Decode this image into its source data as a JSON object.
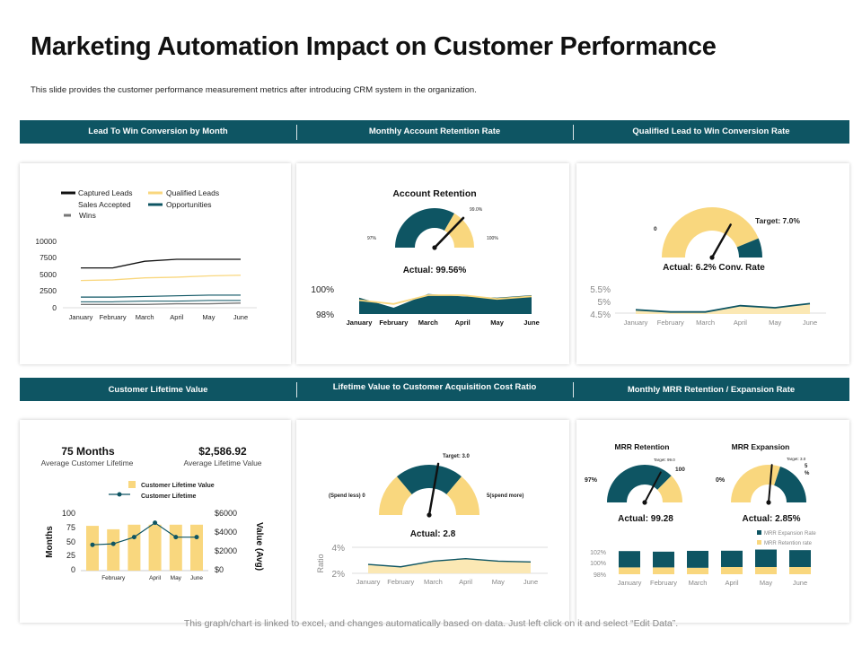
{
  "page": {
    "title": "Marketing Automation Impact on Customer Performance",
    "subtitle": "This slide provides the customer performance measurement metrics after introducing CRM  system in the organization.",
    "footer": "This graph/chart is linked to excel, and changes automatically based on data. Just left click on it and select “Edit Data”."
  },
  "colors": {
    "band": "#0e5563",
    "teal": "#0e5563",
    "yellow": "#f9d77e",
    "black": "#111111",
    "wins": "#777777",
    "paleYellow": "#fbe8b4"
  },
  "bands": {
    "top": [
      "Lead To Win Conversion by Month",
      "Monthly Account Retention Rate",
      "Qualified Lead to Win Conversion Rate"
    ],
    "bottom": [
      "Customer Lifetime Value",
      "Lifetime Value to Customer Acquisition Cost Ratio",
      "Monthly MRR Retention / Expansion Rate"
    ]
  },
  "chart_data": [
    {
      "id": "lead-to-win",
      "type": "line",
      "title": "Lead To Win Conversion by Month",
      "categories": [
        "January",
        "February",
        "March",
        "April",
        "May",
        "June"
      ],
      "legend": [
        "Captured Leads",
        "Qualified Leads",
        "Sales Accepted",
        "Opportunities",
        "Wins"
      ],
      "series": [
        {
          "name": "Captured Leads",
          "values": [
            6000,
            6000,
            7000,
            7300,
            7300,
            7300
          ]
        },
        {
          "name": "Qualified Leads",
          "values": [
            4100,
            4200,
            4500,
            4600,
            4800,
            4900
          ]
        },
        {
          "name": "Opportunities",
          "values": [
            1600,
            1600,
            1700,
            1800,
            1900,
            1900
          ]
        },
        {
          "name": "Sales Accepted",
          "values": [
            900,
            900,
            1000,
            1000,
            1100,
            1100
          ]
        },
        {
          "name": "Wins",
          "values": [
            500,
            500,
            500,
            600,
            600,
            700
          ]
        }
      ],
      "yticks": [
        "10000",
        "7500",
        "5000",
        "2500",
        "0"
      ],
      "ylim": [
        0,
        10000
      ]
    },
    {
      "id": "account-retention-gauge",
      "type": "gauge",
      "title": "Account Retention",
      "min_label": "97%",
      "max_label": "100%",
      "target_label": "99.0%",
      "min": 97,
      "max": 100,
      "actual": 99.56,
      "actual_label": "Actual: 99.56%"
    },
    {
      "id": "account-retention-monthly",
      "type": "area",
      "categories": [
        "January",
        "February",
        "March",
        "April",
        "May",
        "June"
      ],
      "series": [
        {
          "name": "Actual",
          "values": [
            99.3,
            98.5,
            99.6,
            99.4,
            99.3,
            99.5
          ]
        },
        {
          "name": "Target",
          "values": [
            99.1,
            98.8,
            99.5,
            99.5,
            99.2,
            99.4
          ]
        }
      ],
      "yticks": [
        "100%",
        "98%"
      ],
      "ylim": [
        98,
        100
      ]
    },
    {
      "id": "qualified-lead-gauge",
      "type": "gauge",
      "min_label": "0",
      "target_label": "Target: 7.0%",
      "min": 0,
      "max": 8,
      "target": 7.0,
      "actual": 6.2,
      "actual_label": "Actual: 6.2% Conv. Rate"
    },
    {
      "id": "qualified-lead-monthly",
      "type": "line",
      "categories": [
        "January",
        "February",
        "March",
        "April",
        "May",
        "June"
      ],
      "values": [
        4.6,
        4.5,
        4.5,
        4.8,
        4.7,
        4.9
      ],
      "yticks": [
        "5.5%",
        "5%",
        "4.5%"
      ],
      "ylim": [
        4.4,
        5.6
      ]
    },
    {
      "id": "customer-lifetime-value",
      "type": "bar",
      "kpis": [
        {
          "value": "75 Months",
          "label": "Average Customer Lifetime"
        },
        {
          "value": "$2,586.92",
          "label": "Average Lifetime Value"
        }
      ],
      "legend": [
        "Customer Lifetime Value",
        "Customer Lifetime"
      ],
      "categories": [
        "",
        "February",
        "",
        "April",
        "May",
        "June"
      ],
      "bar_values": [
        78,
        72,
        80,
        80,
        80,
        80
      ],
      "line_values": [
        2700,
        2800,
        3500,
        5000,
        3500,
        3500
      ],
      "left_ticks": [
        "100",
        "75",
        "50",
        "25",
        "0"
      ],
      "right_ticks": [
        "$6000",
        "$4000",
        "$2000",
        "$0"
      ],
      "ylabel_left": "Months",
      "ylabel_right": "Value (Avg)",
      "ylim_left": [
        0,
        100
      ],
      "ylim_right": [
        0,
        6000
      ]
    },
    {
      "id": "ltv-cac-gauge",
      "type": "gauge",
      "min_label": "(Spend less) 0",
      "max_label": "5(spend more)",
      "target_label": "Target: 3.0",
      "min": 0,
      "max": 5,
      "target": 3.0,
      "actual": 2.8,
      "actual_label": "Actual: 2.8"
    },
    {
      "id": "ltv-cac-monthly",
      "type": "area",
      "categories": [
        "January",
        "February",
        "March",
        "April",
        "May",
        "June"
      ],
      "values": [
        2.5,
        2.2,
        2.9,
        3.2,
        2.9,
        2.8
      ],
      "yticks": [
        "4%",
        "2%"
      ],
      "ylabel": "Ratio",
      "ylim": [
        1.4,
        4.6
      ]
    },
    {
      "id": "mrr-retention-gauge",
      "type": "gauge",
      "title": "MRR Retention",
      "min_label": "97%",
      "max_label": "100",
      "target_label": "Target: 99.0",
      "min": 97,
      "max": 100,
      "target": 99.0,
      "actual": 99.28,
      "actual_label": "Actual: 99.28"
    },
    {
      "id": "mrr-expansion-gauge",
      "type": "gauge",
      "title": "MRR Expansion",
      "min_label": "0%",
      "max_label_a": "5",
      "max_label_b": "%",
      "target_label": "Target: 3.0",
      "min": 0,
      "max": 5,
      "target": 3.0,
      "actual": 2.85,
      "actual_label": "Actual: 2.85%"
    },
    {
      "id": "mrr-monthly",
      "type": "stacked-bar",
      "categories": [
        "January",
        "February",
        "March",
        "April",
        "May",
        "June"
      ],
      "legend": [
        "MRR Expansion Rate",
        "MRR Retention rate"
      ],
      "series": [
        {
          "name": "MRR Retention rate",
          "values": [
            98.9,
            98.9,
            98.8,
            99.0,
            99.0,
            99.0
          ]
        },
        {
          "name": "MRR Expansion Rate",
          "values": [
            2.8,
            2.7,
            2.9,
            2.8,
            3.0,
            2.9
          ]
        }
      ],
      "yticks": [
        "102%",
        "100%",
        "98%"
      ]
    }
  ]
}
